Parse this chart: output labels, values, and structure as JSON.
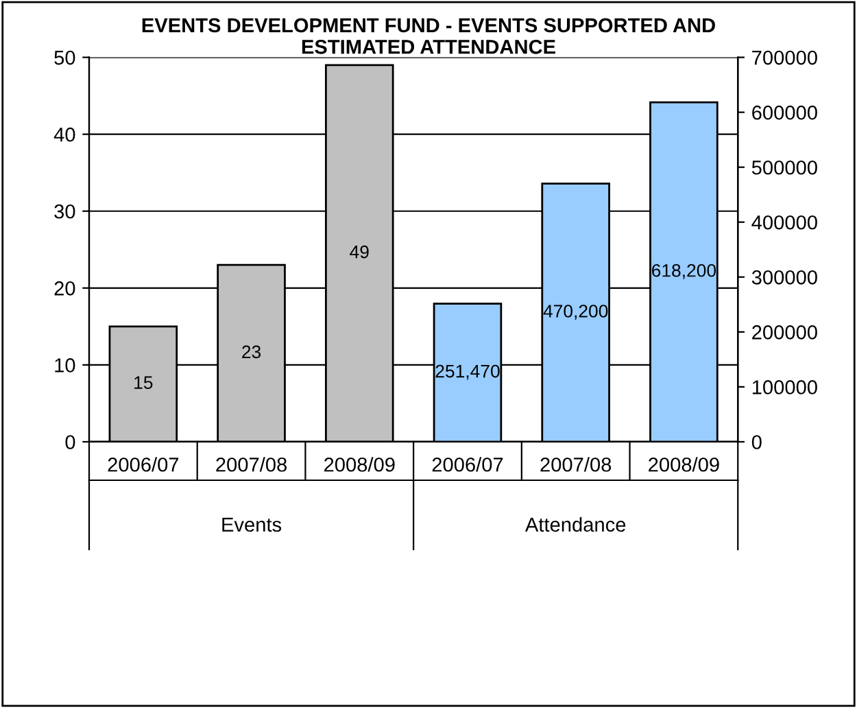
{
  "chart_data": {
    "type": "bar",
    "title": "EVENTS DEVELOPMENT FUND - EVENTS SUPPORTED AND\nESTIMATED ATTENDANCE",
    "categories": [
      "2006/07",
      "2007/08",
      "2008/09",
      "2006/07",
      "2007/08",
      "2008/09"
    ],
    "series": [
      {
        "color": "#c0c0c0",
        "axis": "y",
        "values": [
          15,
          23,
          49,
          null,
          null,
          null
        ],
        "value_labels": [
          "15",
          "23",
          "49",
          null,
          null,
          null
        ]
      },
      {
        "color": "#99ccff",
        "axis": "y2",
        "values": [
          null,
          null,
          null,
          251470,
          470200,
          618200
        ],
        "value_labels": [
          null,
          null,
          null,
          "251,470",
          "470,200",
          "618,200"
        ]
      }
    ],
    "ylim": [
      0,
      50
    ],
    "yticks": [
      0,
      10,
      20,
      30,
      40,
      50
    ],
    "y2lim": [
      0,
      700000
    ],
    "y2ticks": [
      0,
      100000,
      200000,
      300000,
      400000,
      500000,
      600000,
      700000
    ],
    "annotations": [
      "Events",
      "Attendance"
    ],
    "grid": "y",
    "legend": false
  }
}
